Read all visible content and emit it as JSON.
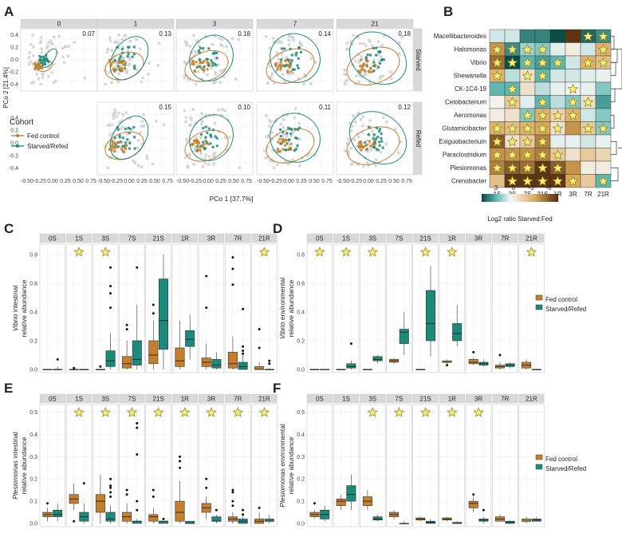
{
  "colors": {
    "fed": "#c47f2c",
    "starved": "#1c8a7a",
    "strip": "#d9d9d9",
    "grid": "#ececec",
    "star_fill": "#f6ee7a",
    "star_stroke": "#9b8a2a"
  },
  "panel_labels": [
    "A",
    "B",
    "C",
    "D",
    "E",
    "F"
  ],
  "panelA": {
    "days": [
      "0",
      "1",
      "3",
      "7",
      "21"
    ],
    "rows": [
      "Starved",
      "Refed"
    ],
    "values_starved": [
      "0.07",
      "0.13",
      "0.18",
      "0.14",
      "0.18"
    ],
    "values_refed": [
      "",
      "0.15",
      "0.10",
      "0.11",
      "0.12"
    ],
    "xlabel": "PCo 1 [37.7%]",
    "ylabel": "PCo 2 [21.4%]",
    "xticks": [
      "-0.50",
      "-0.25",
      "0.00",
      "0.25",
      "0.50",
      "0.75"
    ],
    "yticks": [
      "0.4",
      "0.2",
      "0.0",
      "-0.2",
      "-0.4"
    ],
    "legend_title": "Cohort",
    "legend": [
      "Fed control",
      "Starved/Refed"
    ]
  },
  "panelB": {
    "rows": [
      "Macellibacteroides",
      "Halomonas",
      "Vibrio",
      "Shewanella",
      "CK-1C4-19",
      "Cetobacterium",
      "Aeromonas",
      "Glutamicibacter",
      "Exiguobacterium",
      "Paraclostridium",
      "Plesiomonas",
      "Crenobacter"
    ],
    "cols": [
      "1S",
      "3S",
      "7S",
      "21S",
      "1R",
      "3R",
      "7R",
      "21R"
    ],
    "values": [
      [
        0.5,
        0.5,
        3.0,
        3.0,
        7.0,
        -6.5,
        3.5,
        2.8
      ],
      [
        -4.0,
        2.8,
        1.2,
        1.5,
        0.3,
        -0.5,
        0.5,
        -3.0
      ],
      [
        -5.0,
        4.5,
        2.0,
        2.5,
        2.0,
        0.5,
        -3.0,
        -2.5
      ],
      [
        -3.0,
        0.8,
        -1.0,
        2.0,
        0.5,
        0.5,
        0.3,
        0.2
      ],
      [
        2.0,
        2.0,
        -1.0,
        0.8,
        0.2,
        0.1,
        0.2,
        1.5
      ],
      [
        -0.2,
        -2.0,
        0.3,
        2.0,
        0.8,
        1.5,
        -1.0,
        2.5
      ],
      [
        -0.5,
        -1.0,
        1.5,
        -3.0,
        -1.5,
        -3.0,
        0.5,
        1.5
      ],
      [
        -3.0,
        -2.5,
        -3.0,
        -3.5,
        -1.0,
        -4.0,
        -2.0,
        1.5
      ],
      [
        -5.5,
        -1.0,
        -2.0,
        -4.5,
        0.3,
        0.2,
        0.5,
        0.2
      ],
      [
        -4.0,
        -4.0,
        -4.0,
        -4.5,
        -2.0,
        -1.0,
        -2.0,
        -1.5
      ],
      [
        -4.5,
        -5.5,
        -5.0,
        -6.5,
        -5.5,
        -4.0,
        -0.5,
        -0.5
      ],
      [
        -2.5,
        -6.5,
        -6.5,
        -6.5,
        -6.5,
        -3.5,
        -2.0,
        2.0
      ]
    ],
    "stars": [
      [
        0,
        0,
        0,
        0,
        0,
        0,
        1,
        1
      ],
      [
        1,
        1,
        1,
        1,
        0,
        0,
        0,
        1
      ],
      [
        1,
        1,
        1,
        1,
        1,
        0,
        1,
        1
      ],
      [
        1,
        0,
        1,
        1,
        0,
        0,
        0,
        0
      ],
      [
        0,
        1,
        0,
        0,
        0,
        1,
        0,
        0
      ],
      [
        0,
        1,
        0,
        1,
        0,
        1,
        1,
        0
      ],
      [
        0,
        0,
        1,
        1,
        1,
        1,
        0,
        0
      ],
      [
        1,
        1,
        1,
        1,
        1,
        0,
        1,
        1
      ],
      [
        1,
        1,
        1,
        1,
        0,
        0,
        0,
        0
      ],
      [
        1,
        1,
        1,
        1,
        1,
        0,
        0,
        0
      ],
      [
        1,
        1,
        1,
        1,
        1,
        0,
        0,
        0
      ],
      [
        0,
        1,
        1,
        1,
        1,
        1,
        0,
        1
      ]
    ],
    "colorbar_ticks": [
      "3",
      "0",
      "-3",
      "-6"
    ],
    "colorbar_label": "Log2 ratio Starved:Fed"
  },
  "chart_data": [
    {
      "type": "box",
      "panel": "C",
      "ylabel_italic": "Vibrio",
      "ylabel": " intestinal",
      "ylabel2": "relative abundance",
      "ylim": [
        0,
        0.85
      ],
      "yticks": [
        "0.0",
        "0.2",
        "0.4",
        "0.6",
        "0.8"
      ],
      "facets": [
        "0S",
        "1S",
        "3S",
        "7S",
        "21S",
        "1R",
        "3R",
        "7R",
        "21R"
      ],
      "stars": [
        0,
        1,
        1,
        0,
        0,
        0,
        0,
        0,
        1
      ],
      "fed": [
        [
          0,
          0,
          0,
          0,
          0,
          []
        ],
        [
          0,
          0,
          0,
          0,
          0,
          [
            0.01
          ]
        ],
        [
          0,
          0,
          0,
          0,
          0,
          [
            0.02
          ]
        ],
        [
          0,
          0.01,
          0.04,
          0.09,
          0.2,
          [
            0.28,
            0.31
          ]
        ],
        [
          0,
          0.04,
          0.1,
          0.2,
          0.34,
          [
            0.39,
            0.45
          ]
        ],
        [
          0,
          0.02,
          0.06,
          0.15,
          0.34,
          []
        ],
        [
          0,
          0.02,
          0.05,
          0.08,
          0.18,
          [
            0.43,
            0.65
          ]
        ],
        [
          0,
          0.01,
          0.04,
          0.12,
          0.23,
          [
            0.59,
            0.7,
            0.78
          ]
        ],
        [
          0,
          0,
          0,
          0.02,
          0.05,
          [
            0.15,
            0.28
          ]
        ]
      ],
      "starved": [
        [
          0,
          0,
          0,
          0,
          0.02,
          [
            0.07
          ]
        ],
        [
          0,
          0,
          0,
          0,
          0,
          []
        ],
        [
          0,
          0.02,
          0.06,
          0.13,
          0.25,
          [
            0.43,
            0.53,
            0.58,
            0.71
          ]
        ],
        [
          0,
          0.03,
          0.07,
          0.2,
          0.45,
          [
            0.71
          ]
        ],
        [
          0,
          0.14,
          0.34,
          0.63,
          0.8,
          []
        ],
        [
          0.07,
          0.16,
          0.21,
          0.27,
          0.38,
          []
        ],
        [
          0,
          0.01,
          0.03,
          0.07,
          0.12,
          []
        ],
        [
          0,
          0,
          0.02,
          0.05,
          0.1,
          [
            0.11,
            0.13,
            0.16,
            0.42
          ]
        ],
        [
          0,
          0,
          0,
          0,
          0.01,
          [
            0.04,
            0.06
          ]
        ]
      ]
    },
    {
      "type": "box",
      "panel": "D",
      "ylabel_italic": "Vibrio",
      "ylabel": " environmental",
      "ylabel2": "relative abundance",
      "ylim": [
        0,
        0.85
      ],
      "yticks": [
        "0.0",
        "0.2",
        "0.4",
        "0.6",
        "0.8"
      ],
      "facets": [
        "0S",
        "1S",
        "3S",
        "7S",
        "21S",
        "1R",
        "3R",
        "7R",
        "21R"
      ],
      "stars": [
        1,
        1,
        1,
        0,
        1,
        1,
        0,
        0,
        1
      ],
      "fed": [
        [
          0,
          0,
          0,
          0,
          0,
          []
        ],
        [
          0,
          0,
          0,
          0,
          0,
          []
        ],
        [
          0,
          0,
          0,
          0,
          0,
          []
        ],
        [
          0.04,
          0.05,
          0.06,
          0.07,
          0.08,
          []
        ],
        [
          0,
          0,
          0,
          0,
          0,
          []
        ],
        [
          0.04,
          0.05,
          0.05,
          0.06,
          0.07,
          [
            0.03
          ]
        ],
        [
          0.03,
          0.04,
          0.05,
          0.07,
          0.08,
          [
            0.12
          ]
        ],
        [
          0,
          0.01,
          0.02,
          0.03,
          0.05,
          [
            0.1
          ]
        ],
        [
          0,
          0.01,
          0.03,
          0.05,
          0.07,
          []
        ]
      ],
      "starved": [
        [
          0,
          0,
          0,
          0,
          0,
          []
        ],
        [
          0,
          0.01,
          0.02,
          0.04,
          0.06,
          [
            0.18
          ]
        ],
        [
          0.04,
          0.06,
          0.07,
          0.09,
          0.1,
          []
        ],
        [
          0.1,
          0.18,
          0.26,
          0.28,
          0.4,
          []
        ],
        [
          0.09,
          0.2,
          0.32,
          0.55,
          0.72,
          []
        ],
        [
          0.16,
          0.2,
          0.25,
          0.32,
          0.45,
          []
        ],
        [
          0.02,
          0.03,
          0.04,
          0.05,
          0.07,
          []
        ],
        [
          0.01,
          0.02,
          0.03,
          0.04,
          0.05,
          []
        ],
        [
          0,
          0,
          0,
          0,
          0,
          []
        ]
      ]
    },
    {
      "type": "box",
      "panel": "E",
      "ylabel_italic": "Plesiomonas",
      "ylabel": " intestinal",
      "ylabel2": "relative abundance",
      "ylim": [
        0,
        0.52
      ],
      "yticks": [
        "0.0",
        "0.1",
        "0.2",
        "0.3",
        "0.4",
        "0.5"
      ],
      "facets": [
        "0S",
        "1S",
        "3S",
        "7S",
        "21S",
        "1R",
        "3R",
        "7R",
        "21R"
      ],
      "stars": [
        0,
        1,
        1,
        1,
        1,
        1,
        1,
        1,
        1
      ],
      "fed": [
        [
          0.01,
          0.03,
          0.04,
          0.05,
          0.07,
          [
            0.09
          ]
        ],
        [
          0.06,
          0.09,
          0.11,
          0.13,
          0.18,
          [
            0.01
          ]
        ],
        [
          0,
          0.05,
          0.1,
          0.13,
          0.22,
          []
        ],
        [
          0,
          0.01,
          0.03,
          0.05,
          0.09,
          [
            0.13,
            0.15
          ]
        ],
        [
          0,
          0.01,
          0.03,
          0.04,
          0.07,
          [
            0.12,
            0.15
          ]
        ],
        [
          0,
          0.01,
          0.05,
          0.1,
          0.19,
          [
            0.25,
            0.28,
            0.3
          ]
        ],
        [
          0.02,
          0.05,
          0.07,
          0.09,
          0.12,
          [
            0.16,
            0.2
          ]
        ],
        [
          0,
          0.01,
          0.02,
          0.03,
          0.05,
          [
            0.08,
            0.1,
            0.14,
            0.15
          ]
        ],
        [
          0,
          0,
          0.01,
          0.02,
          0.05,
          [
            0.07
          ]
        ]
      ],
      "starved": [
        [
          0.01,
          0.03,
          0.04,
          0.06,
          0.09,
          []
        ],
        [
          0,
          0.01,
          0.03,
          0.05,
          0.09,
          [
            0.18
          ]
        ],
        [
          0,
          0.01,
          0.02,
          0.05,
          0.08,
          [
            0.12,
            0.14,
            0.16,
            0.17,
            0.2
          ]
        ],
        [
          0,
          0,
          0.01,
          0.01,
          0.02,
          [
            0.06,
            0.1,
            0.31,
            0.43,
            0.45
          ]
        ],
        [
          0,
          0,
          0.01,
          0.01,
          0.01,
          [
            0.02
          ]
        ],
        [
          0,
          0,
          0,
          0.01,
          0.01,
          []
        ],
        [
          0,
          0.01,
          0.01,
          0.03,
          0.04,
          [
            0.06
          ]
        ],
        [
          0,
          0,
          0.01,
          0.02,
          0.03,
          [
            0.04,
            0.06
          ]
        ],
        [
          0,
          0.01,
          0.01,
          0.02,
          0.04,
          []
        ]
      ]
    },
    {
      "type": "box",
      "panel": "F",
      "ylabel_italic": "Plesiomonas",
      "ylabel": " environmental",
      "ylabel2": "relative abundance",
      "ylim": [
        0,
        0.52
      ],
      "yticks": [
        "0.0",
        "0.1",
        "0.2",
        "0.3",
        "0.4",
        "0.5"
      ],
      "facets": [
        "0S",
        "1S",
        "3S",
        "7S",
        "21S",
        "1R",
        "3R",
        "7R",
        "21R"
      ],
      "stars": [
        0,
        0,
        1,
        1,
        1,
        1,
        1,
        0,
        0
      ],
      "fed": [
        [
          0.02,
          0.03,
          0.04,
          0.05,
          0.06,
          [
            0.09
          ]
        ],
        [
          0.06,
          0.08,
          0.1,
          0.11,
          0.13,
          []
        ],
        [
          0.06,
          0.08,
          0.1,
          0.12,
          0.15,
          []
        ],
        [
          0.02,
          0.03,
          0.04,
          0.05,
          0.06,
          []
        ],
        [
          0.01,
          0.015,
          0.02,
          0.025,
          0.03,
          []
        ],
        [
          0.01,
          0.015,
          0.02,
          0.025,
          0.03,
          []
        ],
        [
          0.05,
          0.07,
          0.09,
          0.1,
          0.12,
          [
            0.13
          ]
        ],
        [
          0.01,
          0.01,
          0.02,
          0.03,
          0.04,
          []
        ],
        [
          0,
          0.01,
          0.01,
          0.02,
          0.03,
          []
        ]
      ],
      "starved": [
        [
          0.01,
          0.02,
          0.04,
          0.06,
          0.08,
          []
        ],
        [
          0.06,
          0.1,
          0.13,
          0.17,
          0.22,
          []
        ],
        [
          0.01,
          0.015,
          0.02,
          0.03,
          0.04,
          []
        ],
        [
          0,
          0,
          0,
          0,
          0.01,
          []
        ],
        [
          0,
          0,
          0.005,
          0.01,
          0.02,
          []
        ],
        [
          0,
          0,
          0,
          0.005,
          0.01,
          []
        ],
        [
          0,
          0.01,
          0.015,
          0.02,
          0.03,
          [
            0.06
          ]
        ],
        [
          0,
          0,
          0.005,
          0.01,
          0.015,
          []
        ],
        [
          0.01,
          0.01,
          0.015,
          0.02,
          0.03,
          []
        ]
      ]
    }
  ],
  "box_legend": [
    "Fed control",
    "Starved/Refed"
  ]
}
